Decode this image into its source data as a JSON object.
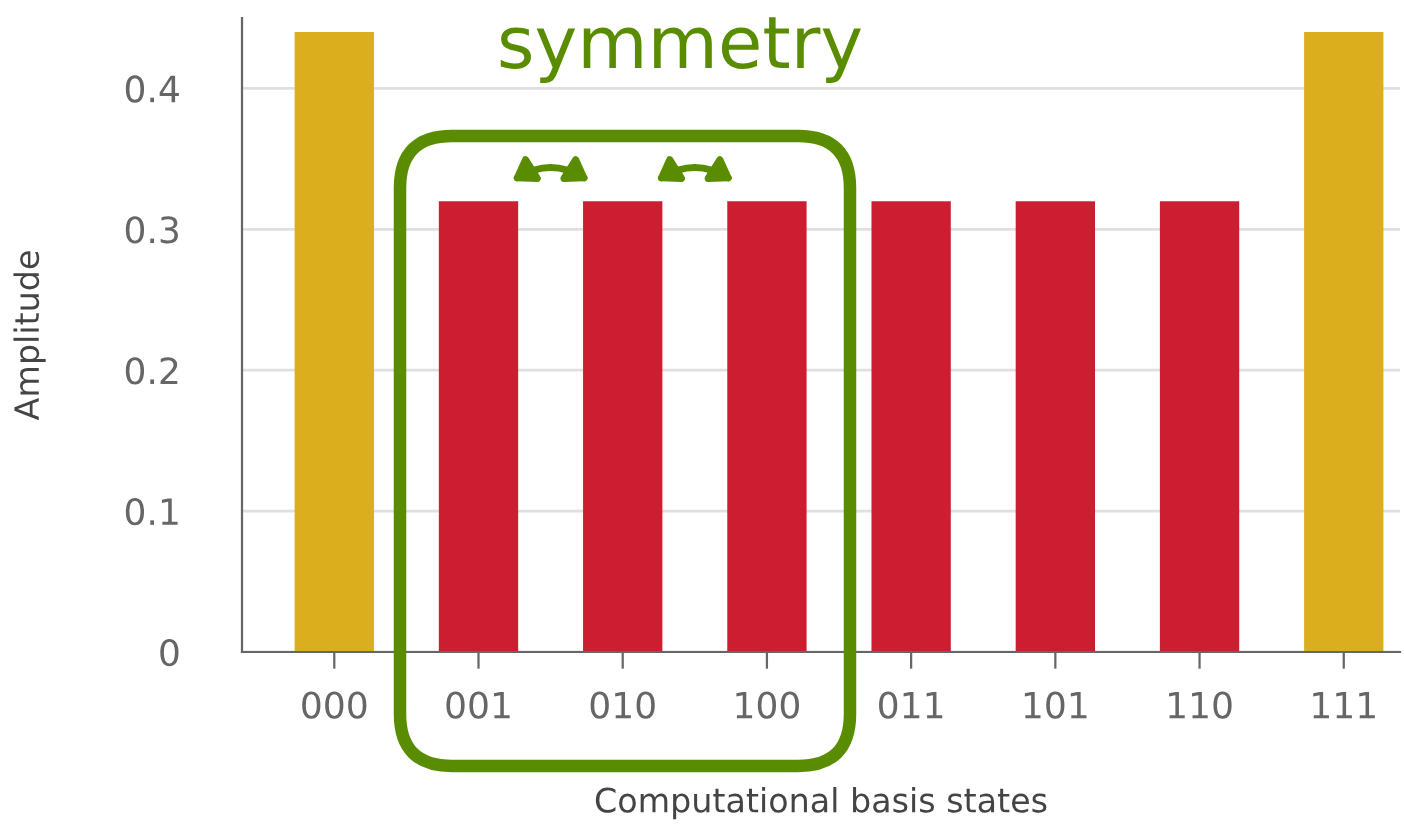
{
  "chart_data": {
    "type": "bar",
    "xlabel": "Computational basis states",
    "ylabel": "Amplitude",
    "categories": [
      "000",
      "001",
      "010",
      "100",
      "011",
      "101",
      "110",
      "111"
    ],
    "values": [
      0.44,
      0.32,
      0.32,
      0.32,
      0.32,
      0.32,
      0.32,
      0.44
    ],
    "colors": [
      "#dbae1e",
      "#cc1e30",
      "#cc1e30",
      "#cc1e30",
      "#cc1e30",
      "#cc1e30",
      "#cc1e30",
      "#dbae1e"
    ],
    "ylim": [
      0,
      0.45
    ],
    "yticks": [
      0,
      0.1,
      0.2,
      0.3,
      0.4
    ],
    "grid": "y",
    "annotations": [
      "symmetry"
    ]
  }
}
